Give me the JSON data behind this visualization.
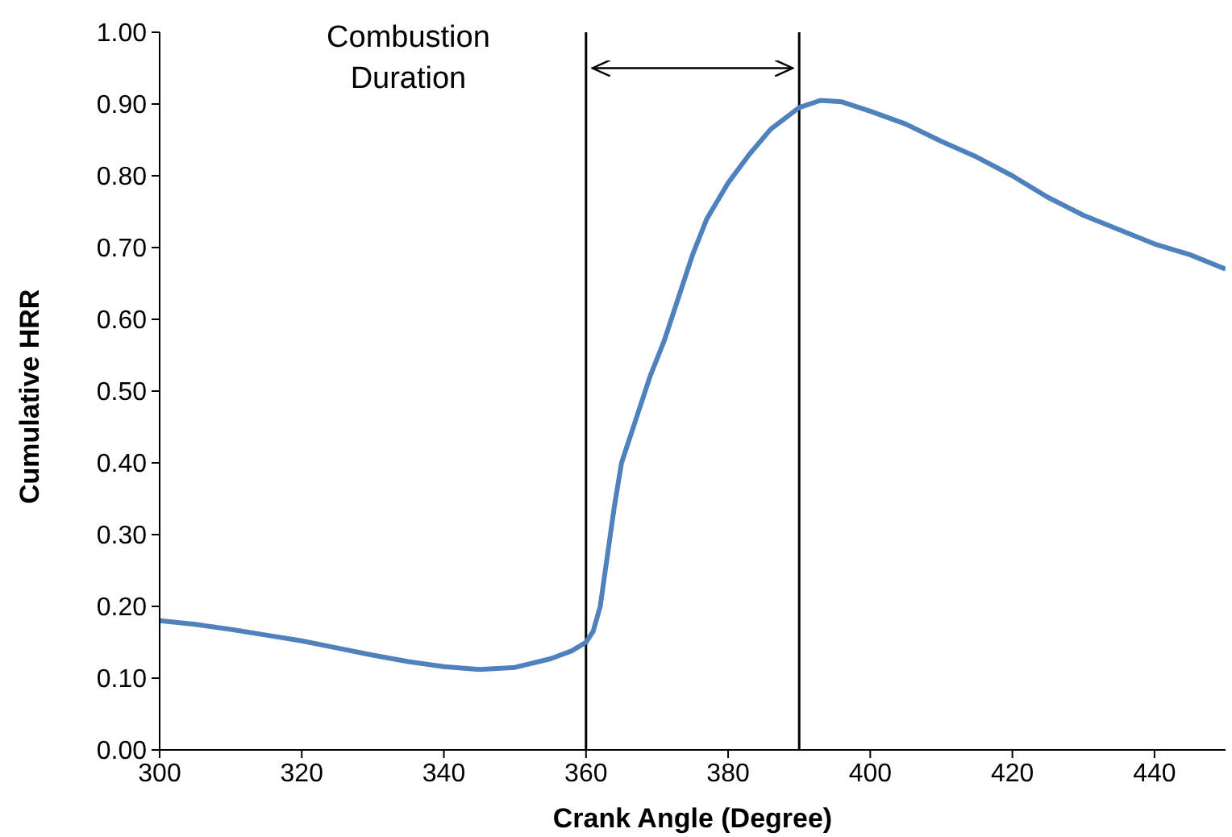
{
  "chart_data": {
    "type": "line",
    "xlabel": "Crank Angle (Degree)",
    "ylabel": "Cumulative HRR",
    "x": [
      300,
      305,
      310,
      315,
      320,
      325,
      330,
      335,
      340,
      345,
      350,
      355,
      358,
      360,
      361,
      362,
      363,
      364,
      365,
      367,
      369,
      371,
      373,
      375,
      377,
      380,
      383,
      386,
      390,
      393,
      396,
      400,
      405,
      410,
      415,
      420,
      425,
      430,
      435,
      440,
      445,
      450
    ],
    "series": [
      {
        "color": "#4f81bd",
        "values": [
          0.18,
          0.175,
          0.168,
          0.16,
          0.152,
          0.142,
          0.132,
          0.123,
          0.116,
          0.112,
          0.115,
          0.127,
          0.138,
          0.15,
          0.165,
          0.2,
          0.27,
          0.34,
          0.4,
          0.46,
          0.52,
          0.57,
          0.63,
          0.69,
          0.74,
          0.79,
          0.83,
          0.865,
          0.895,
          0.905,
          0.903,
          0.89,
          0.872,
          0.848,
          0.826,
          0.8,
          0.77,
          0.745,
          0.725,
          0.705,
          0.69,
          0.67
        ]
      }
    ],
    "xlim": [
      300,
      450
    ],
    "xticks": [
      300,
      320,
      340,
      360,
      380,
      400,
      420,
      440
    ],
    "ylim": [
      0,
      1
    ],
    "yticks": [
      {
        "value": 0,
        "label": "0.00"
      },
      {
        "value": 0.1,
        "label": "0.10"
      },
      {
        "value": 0.2,
        "label": "0.20"
      },
      {
        "value": 0.3,
        "label": "0.30"
      },
      {
        "value": 0.4,
        "label": "0.40"
      },
      {
        "value": 0.5,
        "label": "0.50"
      },
      {
        "value": 0.6,
        "label": "0.60"
      },
      {
        "value": 0.7,
        "label": "0.70"
      },
      {
        "value": 0.8,
        "label": "0.80"
      },
      {
        "value": 0.9,
        "label": "0.90"
      },
      {
        "value": 1,
        "label": "1.00"
      }
    ],
    "grid": false,
    "legend": false,
    "marker": "none",
    "line_style": "solid",
    "ref_lines": [
      {
        "axis": "x",
        "value": 360,
        "color": "#000000"
      },
      {
        "axis": "x",
        "value": 390,
        "color": "#000000"
      }
    ],
    "annotations": [
      "Combustion Duration"
    ]
  }
}
